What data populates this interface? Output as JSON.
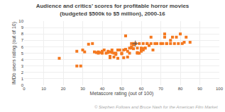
{
  "chart_data": {
    "type": "scatter",
    "title": "Audience and critics’ scores for profitable horror movies",
    "subtitle": "(budgeted $500k to $5 million), 2000-16",
    "xlabel": "Metascore rating (out of 100)",
    "ylabel": "IMDb users rating (out of 10)",
    "annotations": [
      "© Stephen Follows and Bruce Nash for the American Film Market"
    ],
    "xlim": [
      0,
      100
    ],
    "ylim": [
      0,
      10
    ],
    "xticks": [
      0,
      10,
      20,
      30,
      40,
      50,
      60,
      70,
      80,
      90,
      100
    ],
    "yticks": [
      0,
      1,
      2,
      3,
      4,
      5,
      6,
      7,
      8,
      9,
      10
    ],
    "grid": true,
    "series": [
      {
        "color": "#F47920",
        "marker": "square",
        "x": [
          18,
          27,
          27,
          29,
          30,
          31,
          33,
          35,
          36,
          37,
          38,
          38,
          39,
          40,
          40,
          41,
          42,
          43,
          43,
          44,
          44,
          44,
          45,
          45,
          46,
          46,
          47,
          47,
          48,
          48,
          49,
          50,
          50,
          51,
          51,
          52,
          52,
          53,
          53,
          54,
          54,
          55,
          55,
          55,
          56,
          56,
          56,
          57,
          57,
          57,
          58,
          58,
          58,
          59,
          59,
          60,
          60,
          60,
          61,
          61,
          61,
          62,
          62,
          63,
          63,
          64,
          65,
          65,
          66,
          67,
          68,
          70,
          71,
          72,
          72,
          73,
          73,
          75,
          75,
          76,
          77,
          78,
          79,
          80,
          81,
          82,
          83,
          85
        ],
        "values": [
          4.2,
          5.3,
          3.0,
          3.0,
          5.5,
          5.2,
          6.4,
          6.5,
          5.2,
          5.1,
          5.2,
          5.0,
          5.1,
          5.0,
          5.3,
          5.5,
          5.0,
          5.1,
          5.3,
          5.2,
          4.5,
          4.3,
          5.5,
          5.1,
          5.0,
          4.4,
          4.8,
          5.0,
          5.5,
          4.2,
          5.5,
          5.0,
          4.9,
          5.5,
          4.3,
          7.7,
          5.6,
          5.3,
          4.4,
          5.8,
          5.0,
          6.5,
          6.0,
          5.8,
          5.7,
          6.3,
          6.5,
          6.5,
          6.5,
          6.5,
          5.8,
          5.1,
          5.0,
          6.5,
          5.0,
          5.8,
          5.5,
          5.3,
          6.5,
          5.7,
          5.5,
          5.8,
          5.8,
          6.5,
          6.5,
          6.2,
          6.5,
          7.5,
          5.5,
          6.5,
          6.5,
          6.5,
          6.5,
          8.0,
          7.5,
          6.5,
          6.5,
          6.5,
          7.0,
          7.5,
          6.5,
          7.5,
          6.5,
          8.0,
          6.5,
          6.7,
          7.5,
          6.7
        ]
      },
      {
        "color": "#555555",
        "marker": "cross",
        "x": [
          57
        ],
        "values": [
          6.5
        ]
      }
    ]
  }
}
